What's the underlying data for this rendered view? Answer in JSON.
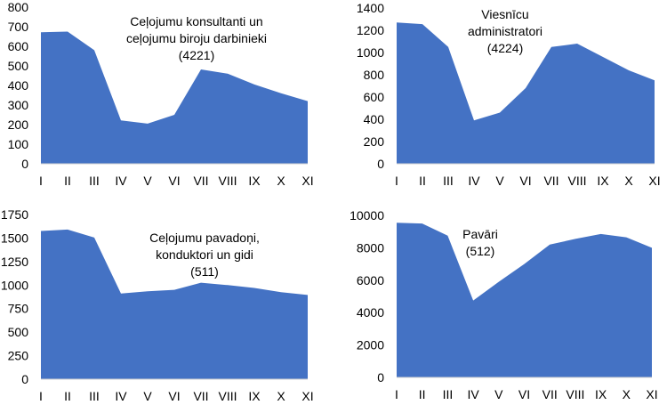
{
  "chart_data": [
    {
      "type": "area",
      "title": [
        "Ceļojumu konsultanti un",
        "ceļojumu biroju darbinieki",
        "(4221)"
      ],
      "categories": [
        "I",
        "II",
        "III",
        "IV",
        "V",
        "VI",
        "VII",
        "VIII",
        "IX",
        "X",
        "XI"
      ],
      "values": [
        672,
        675,
        580,
        222,
        205,
        250,
        482,
        460,
        405,
        360,
        320
      ],
      "ylim": [
        0,
        800
      ],
      "yticks": [
        "0",
        "100",
        "200",
        "300",
        "400",
        "500",
        "600",
        "700",
        "800"
      ],
      "grid": false,
      "color": "#4472C4"
    },
    {
      "type": "area",
      "title": [
        "Viesnīcu",
        "administratori",
        "(4224)"
      ],
      "categories": [
        "I",
        "II",
        "III",
        "IV",
        "V",
        "VI",
        "VII",
        "VIII",
        "IX",
        "X",
        "XI"
      ],
      "values": [
        1270,
        1255,
        1050,
        390,
        460,
        680,
        1050,
        1080,
        960,
        840,
        750
      ],
      "ylim": [
        0,
        1400
      ],
      "yticks": [
        "0",
        "200",
        "400",
        "600",
        "800",
        "1000",
        "1200",
        "1400"
      ],
      "grid": false,
      "color": "#4472C4"
    },
    {
      "type": "area",
      "title": [
        "Ceļojumu pavadoņi,",
        "konduktori un gidi",
        "(511)"
      ],
      "categories": [
        "I",
        "II",
        "III",
        "IV",
        "V",
        "VI",
        "VII",
        "VIII",
        "IX",
        "X",
        "XI"
      ],
      "values": [
        1575,
        1590,
        1505,
        910,
        935,
        950,
        1025,
        1000,
        970,
        925,
        895
      ],
      "ylim": [
        0,
        1750
      ],
      "yticks": [
        "0",
        "250",
        "500",
        "750",
        "1000",
        "1250",
        "1500",
        "1750"
      ],
      "grid": false,
      "color": "#4472C4"
    },
    {
      "type": "area",
      "title": [
        "Pavāri",
        "(512)"
      ],
      "categories": [
        "I",
        "II",
        "III",
        "IV",
        "V",
        "VI",
        "VII",
        "VIII",
        "IX",
        "X",
        "XI"
      ],
      "values": [
        9550,
        9500,
        8750,
        4750,
        5900,
        7000,
        8200,
        8550,
        8850,
        8650,
        8000
      ],
      "ylim": [
        0,
        10000
      ],
      "yticks": [
        "0",
        "2000",
        "4000",
        "6000",
        "8000",
        "10000"
      ],
      "grid": false,
      "color": "#4472C4"
    }
  ]
}
